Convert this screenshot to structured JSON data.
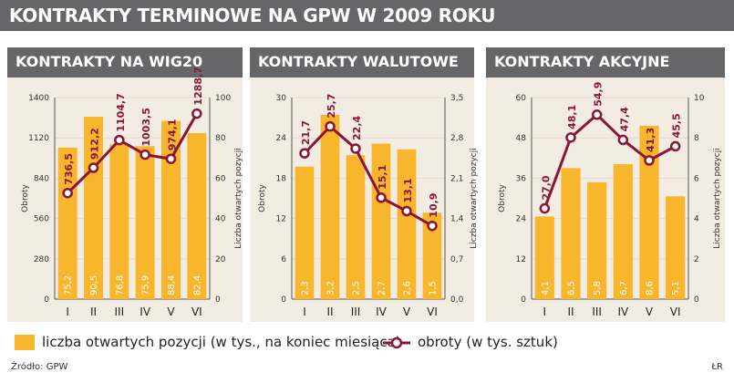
{
  "title": "KONTRAKTY TERMINOWE NA GPW W 2009 ROKU",
  "legend": {
    "bars": "liczba otwartych pozycji (w tys., na koniec miesiąca)",
    "line": "obroty (w tys. sztuk)"
  },
  "source": "Źródło: GPW",
  "credit": "ŁR",
  "colors": {
    "bar": "#f8b62d",
    "line": "#8a1538",
    "panel_bg": "#f3ece2",
    "header": "#666669"
  },
  "chart_data": [
    {
      "type": "bar",
      "title": "KONTRAKTY NA WIG20",
      "categories": [
        "I",
        "II",
        "III",
        "IV",
        "V",
        "VI"
      ],
      "ylabel": "Obroty",
      "y2label": "Liczba otwartych pozycji",
      "yticks": [
        "0",
        "280",
        "560",
        "840",
        "1120",
        "1400"
      ],
      "y2ticks": [
        "0",
        "20",
        "40",
        "60",
        "80",
        "100"
      ],
      "ylim": [
        0,
        1400
      ],
      "y2lim": [
        0,
        100
      ],
      "series": [
        {
          "values": [
            75.2,
            90.5,
            76.8,
            75.9,
            88.4,
            82.4
          ],
          "labels": [
            "75,2",
            "90,5",
            "76,8",
            "75,9",
            "88,4",
            "82,4"
          ]
        },
        {
          "values": [
            736.5,
            912.2,
            1104.7,
            1003.5,
            974.1,
            1288.7
          ],
          "labels": [
            "736,5",
            "912,2",
            "1104,7",
            "1003,5",
            "974,1",
            "1288,7"
          ]
        }
      ]
    },
    {
      "type": "bar",
      "title": "KONTRAKTY WALUTOWE",
      "categories": [
        "I",
        "II",
        "III",
        "IV",
        "V",
        "VI"
      ],
      "ylabel": "Obroty",
      "y2label": "Liczba otwartych pozycji",
      "yticks": [
        "0",
        "6",
        "12",
        "18",
        "24",
        "30"
      ],
      "y2ticks": [
        "0,0",
        "0,7",
        "1,4",
        "2,1",
        "2,8",
        "3,5"
      ],
      "ylim": [
        0,
        30
      ],
      "y2lim": [
        0,
        3.5
      ],
      "series": [
        {
          "values": [
            2.3,
            3.2,
            2.5,
            2.7,
            2.6,
            1.5
          ],
          "labels": [
            "2,3",
            "3,2",
            "2,5",
            "2,7",
            "2,6",
            "1,5"
          ]
        },
        {
          "values": [
            21.7,
            25.7,
            22.4,
            15.1,
            13.1,
            10.9
          ],
          "labels": [
            "21,7",
            "25,7",
            "22,4",
            "15,1",
            "13,1",
            "10,9"
          ]
        }
      ]
    },
    {
      "type": "bar",
      "title": "KONTRAKTY AKCYJNE",
      "categories": [
        "I",
        "II",
        "III",
        "IV",
        "V",
        "VI"
      ],
      "ylabel": "Obroty",
      "y2label": "Liczba otwartych pozycji",
      "yticks": [
        "0",
        "12",
        "24",
        "36",
        "48",
        "60"
      ],
      "y2ticks": [
        "0",
        "2",
        "4",
        "6",
        "8",
        "10"
      ],
      "ylim": [
        0,
        60
      ],
      "y2lim": [
        0,
        10
      ],
      "series": [
        {
          "values": [
            4.1,
            6.5,
            5.8,
            6.7,
            8.6,
            5.1
          ],
          "labels": [
            "4,1",
            "6,5",
            "5,8",
            "6,7",
            "8,6",
            "5,1"
          ]
        },
        {
          "values": [
            27.0,
            48.1,
            54.9,
            47.4,
            41.3,
            45.5
          ],
          "labels": [
            "27,0",
            "48,1",
            "54,9",
            "47,4",
            "41,3",
            "45,5"
          ]
        }
      ]
    }
  ]
}
